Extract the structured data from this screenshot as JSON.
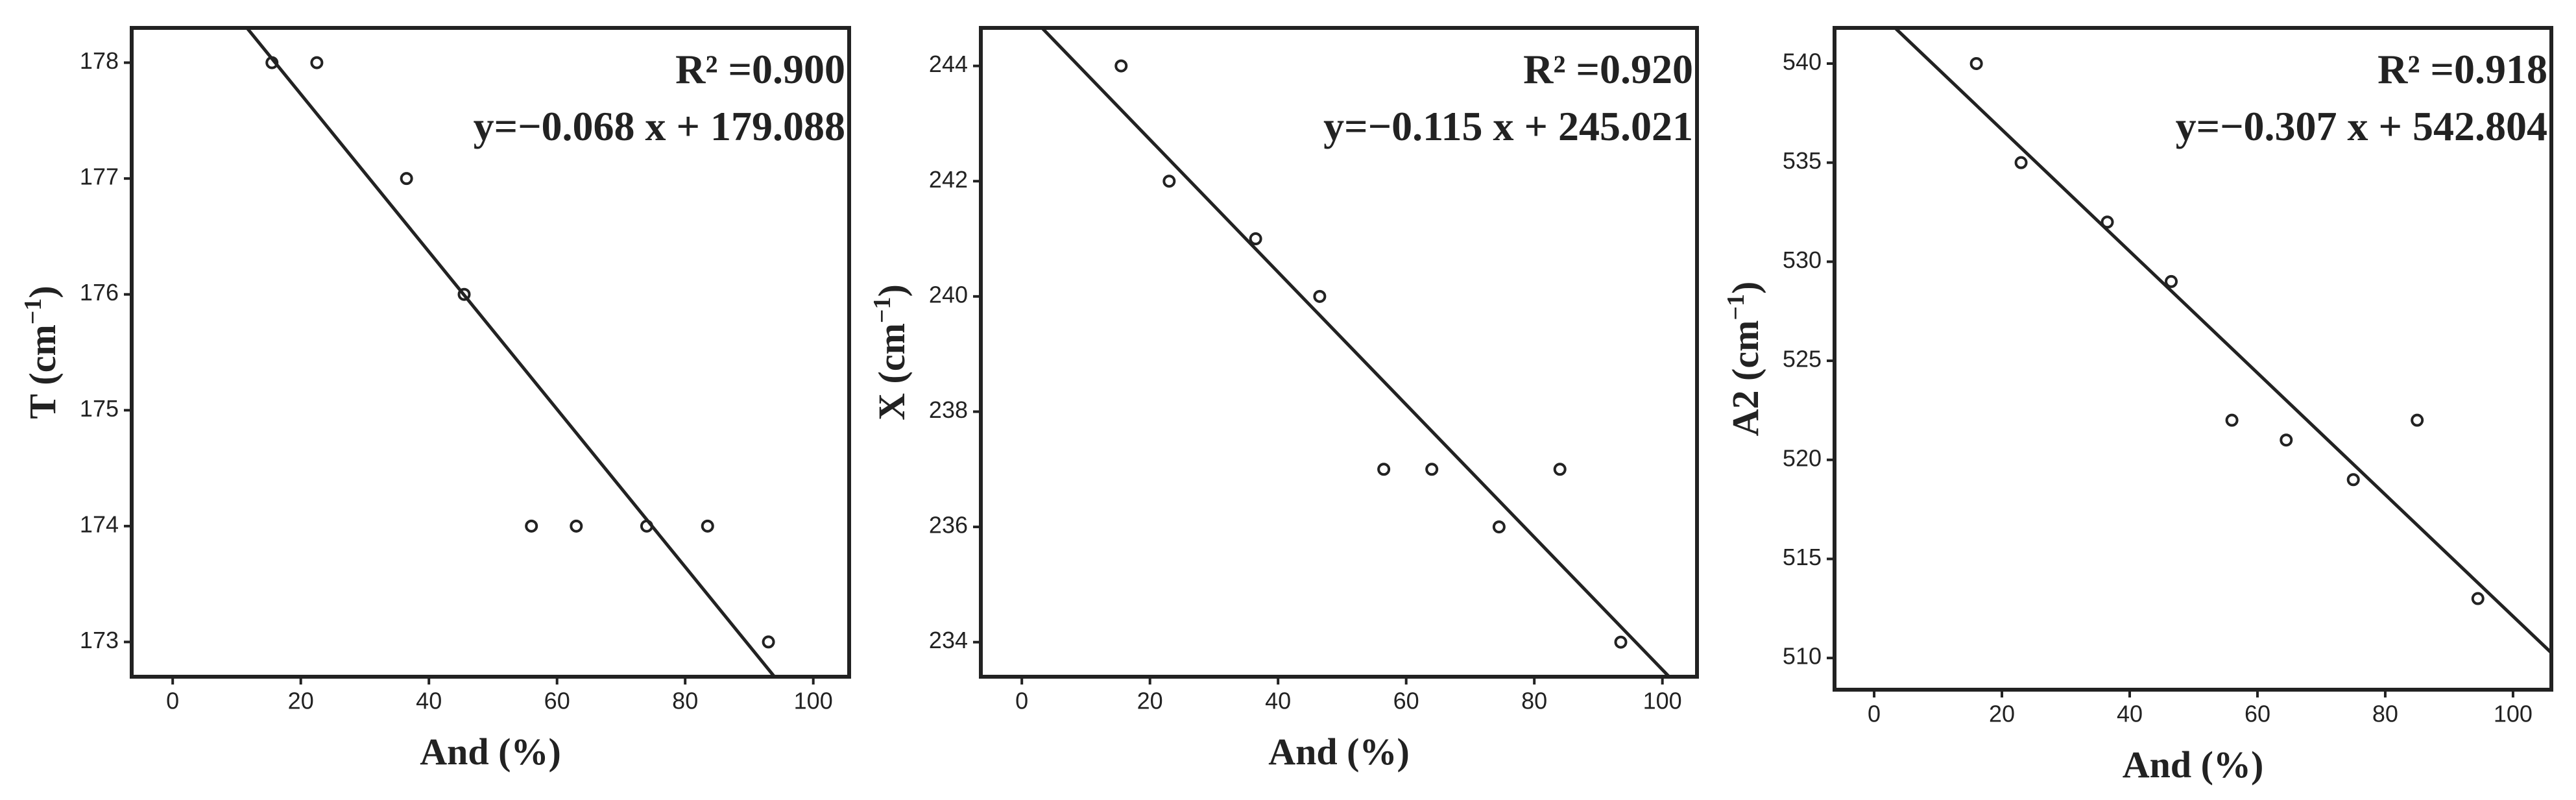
{
  "chart_data": [
    {
      "type": "scatter",
      "xlabel": "And (%)",
      "ylabel": {
        "main": "T (cm",
        "sup": "−1",
        "end": ")"
      },
      "x": [
        15.5,
        22.5,
        36.5,
        45.5,
        56,
        63,
        74,
        83.5,
        93
      ],
      "values": [
        178,
        178,
        177,
        176,
        174,
        174,
        174,
        174,
        173
      ],
      "xlim": [
        -6.4,
        105.6
      ],
      "ylim": [
        172.7,
        178.3
      ],
      "xticks": [
        0,
        20,
        40,
        60,
        80,
        100
      ],
      "yticks": [
        173,
        174,
        175,
        176,
        177,
        178
      ],
      "fit_line": {
        "slope": -0.068,
        "intercept": 179.088
      },
      "annotations": [
        "R² =0.900",
        "y=−0.068 x + 179.088"
      ],
      "color": "#222222"
    },
    {
      "type": "scatter",
      "xlabel": "And (%)",
      "ylabel": {
        "main": "X (cm",
        "sup": "−1",
        "end": ")"
      },
      "x": [
        15.5,
        23,
        36.5,
        46.5,
        56.5,
        64,
        74.5,
        84,
        93.5
      ],
      "values": [
        244,
        242,
        241,
        240,
        237,
        237,
        236,
        237,
        234
      ],
      "xlim": [
        -6.4,
        105.4
      ],
      "ylim": [
        233.4,
        244.66
      ],
      "xticks": [
        0,
        20,
        40,
        60,
        80,
        100
      ],
      "yticks": [
        234,
        236,
        238,
        240,
        242,
        244
      ],
      "fit_line": {
        "slope": -0.115,
        "intercept": 245.021
      },
      "annotations": [
        "R² =0.920",
        "y=−0.115 x + 245.021"
      ],
      "color": "#222222"
    },
    {
      "type": "scatter",
      "xlabel": "And (%)",
      "ylabel": {
        "main": "A2 (cm",
        "sup": "−1",
        "end": ")"
      },
      "x": [
        16,
        23,
        36.5,
        46.5,
        56,
        64.5,
        75,
        85,
        94.5
      ],
      "values": [
        540,
        535,
        532,
        529,
        522,
        521,
        519,
        522,
        513
      ],
      "xlim": [
        -6.2,
        106
      ],
      "ylim": [
        508.4,
        541.8
      ],
      "xticks": [
        0,
        20,
        40,
        60,
        80,
        100
      ],
      "yticks": [
        510,
        515,
        520,
        525,
        530,
        535,
        540
      ],
      "fit_line": {
        "slope": -0.307,
        "intercept": 542.804
      },
      "annotations": [
        "R² =0.918",
        "y=−0.307 x + 542.804"
      ],
      "color": "#222222"
    }
  ]
}
